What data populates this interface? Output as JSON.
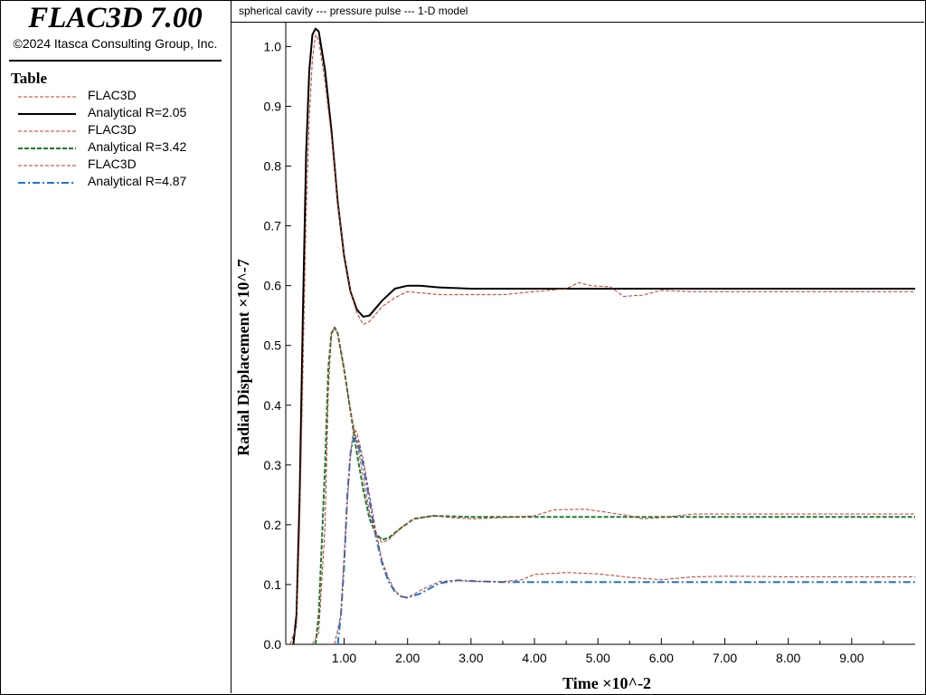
{
  "app": {
    "title": "FLAC3D 7.00",
    "copyright": "©2024 Itasca Consulting Group, Inc."
  },
  "legend": {
    "title": "Table",
    "items": [
      {
        "label": "FLAC3D",
        "color": "#c0392b",
        "style": "dashed-thin"
      },
      {
        "label": "Analytical R=2.05",
        "color": "#000000",
        "style": "solid"
      },
      {
        "label": "FLAC3D",
        "color": "#c0392b",
        "style": "dashed-thin"
      },
      {
        "label": "Analytical R=3.42",
        "color": "#1e7a2e",
        "style": "dashed"
      },
      {
        "label": "FLAC3D",
        "color": "#c0392b",
        "style": "dashed-thin"
      },
      {
        "label": "Analytical R=4.87",
        "color": "#1a73d9",
        "style": "dashdot"
      }
    ]
  },
  "chart_data": {
    "type": "line",
    "title": "spherical cavity --- pressure pulse --- 1-D model",
    "xlabel": "Time ×10^-2",
    "ylabel": "Radial Displacement ×10^-7",
    "xlim": [
      0.08,
      10.0
    ],
    "ylim": [
      0.0,
      1.04
    ],
    "xticks": [
      "1.00",
      "2.00",
      "3.00",
      "4.00",
      "5.00",
      "6.00",
      "7.00",
      "8.00",
      "9.00"
    ],
    "yticks": [
      "0.0",
      "0.1",
      "0.2",
      "0.3",
      "0.4",
      "0.5",
      "0.6",
      "0.7",
      "0.8",
      "0.9",
      "1.0"
    ],
    "series": [
      {
        "name": "FLAC3D",
        "color": "#c0392b",
        "style": "dashed-thin",
        "points": [
          [
            0.15,
            0
          ],
          [
            0.25,
            0.03
          ],
          [
            0.3,
            0.2
          ],
          [
            0.35,
            0.45
          ],
          [
            0.4,
            0.72
          ],
          [
            0.45,
            0.88
          ],
          [
            0.5,
            0.98
          ],
          [
            0.55,
            1.02
          ],
          [
            0.6,
            1.01
          ],
          [
            0.7,
            0.94
          ],
          [
            0.8,
            0.85
          ],
          [
            0.9,
            0.74
          ],
          [
            1.0,
            0.65
          ],
          [
            1.1,
            0.59
          ],
          [
            1.2,
            0.555
          ],
          [
            1.3,
            0.535
          ],
          [
            1.4,
            0.54
          ],
          [
            1.6,
            0.565
          ],
          [
            1.8,
            0.58
          ],
          [
            2.0,
            0.59
          ],
          [
            2.5,
            0.585
          ],
          [
            3.0,
            0.585
          ],
          [
            3.5,
            0.585
          ],
          [
            4.0,
            0.59
          ],
          [
            4.5,
            0.595
          ],
          [
            4.7,
            0.605
          ],
          [
            4.9,
            0.6
          ],
          [
            5.2,
            0.598
          ],
          [
            5.4,
            0.582
          ],
          [
            5.7,
            0.584
          ],
          [
            6.0,
            0.592
          ],
          [
            6.5,
            0.59
          ],
          [
            7.0,
            0.59
          ],
          [
            8.0,
            0.59
          ],
          [
            9.0,
            0.59
          ],
          [
            10.0,
            0.59
          ]
        ]
      },
      {
        "name": "Analytical R=2.05",
        "color": "#000000",
        "style": "solid",
        "points": [
          [
            0.2,
            0
          ],
          [
            0.25,
            0.05
          ],
          [
            0.3,
            0.25
          ],
          [
            0.35,
            0.55
          ],
          [
            0.4,
            0.82
          ],
          [
            0.45,
            0.96
          ],
          [
            0.5,
            1.02
          ],
          [
            0.55,
            1.03
          ],
          [
            0.6,
            1.025
          ],
          [
            0.7,
            0.96
          ],
          [
            0.8,
            0.86
          ],
          [
            0.9,
            0.74
          ],
          [
            1.0,
            0.65
          ],
          [
            1.1,
            0.59
          ],
          [
            1.2,
            0.56
          ],
          [
            1.3,
            0.548
          ],
          [
            1.4,
            0.55
          ],
          [
            1.6,
            0.575
          ],
          [
            1.8,
            0.595
          ],
          [
            2.0,
            0.6
          ],
          [
            2.2,
            0.6
          ],
          [
            2.5,
            0.597
          ],
          [
            3.0,
            0.595
          ],
          [
            4.0,
            0.595
          ],
          [
            5.0,
            0.595
          ],
          [
            6.0,
            0.595
          ],
          [
            7.0,
            0.595
          ],
          [
            8.0,
            0.595
          ],
          [
            9.0,
            0.595
          ],
          [
            10.0,
            0.595
          ]
        ]
      },
      {
        "name": "FLAC3D",
        "color": "#c0392b",
        "style": "dashed-thin",
        "points": [
          [
            0.5,
            0
          ],
          [
            0.6,
            0.02
          ],
          [
            0.7,
            0.2
          ],
          [
            0.75,
            0.42
          ],
          [
            0.8,
            0.52
          ],
          [
            0.85,
            0.53
          ],
          [
            0.9,
            0.52
          ],
          [
            1.0,
            0.46
          ],
          [
            1.1,
            0.39
          ],
          [
            1.2,
            0.34
          ],
          [
            1.3,
            0.28
          ],
          [
            1.4,
            0.22
          ],
          [
            1.5,
            0.185
          ],
          [
            1.6,
            0.17
          ],
          [
            1.7,
            0.175
          ],
          [
            1.9,
            0.195
          ],
          [
            2.1,
            0.21
          ],
          [
            2.4,
            0.215
          ],
          [
            2.7,
            0.212
          ],
          [
            3.0,
            0.21
          ],
          [
            3.5,
            0.212
          ],
          [
            4.0,
            0.215
          ],
          [
            4.3,
            0.225
          ],
          [
            4.8,
            0.226
          ],
          [
            5.2,
            0.22
          ],
          [
            5.5,
            0.215
          ],
          [
            5.7,
            0.21
          ],
          [
            6.0,
            0.212
          ],
          [
            6.5,
            0.218
          ],
          [
            7.0,
            0.218
          ],
          [
            8.0,
            0.218
          ],
          [
            9.0,
            0.218
          ],
          [
            10.0,
            0.218
          ]
        ]
      },
      {
        "name": "Analytical R=3.42",
        "color": "#1e7a2e",
        "style": "dashed",
        "points": [
          [
            0.55,
            0
          ],
          [
            0.6,
            0.05
          ],
          [
            0.7,
            0.3
          ],
          [
            0.75,
            0.46
          ],
          [
            0.8,
            0.52
          ],
          [
            0.85,
            0.53
          ],
          [
            0.9,
            0.52
          ],
          [
            1.0,
            0.46
          ],
          [
            1.1,
            0.39
          ],
          [
            1.2,
            0.32
          ],
          [
            1.3,
            0.26
          ],
          [
            1.4,
            0.21
          ],
          [
            1.5,
            0.185
          ],
          [
            1.6,
            0.175
          ],
          [
            1.7,
            0.178
          ],
          [
            1.9,
            0.195
          ],
          [
            2.1,
            0.21
          ],
          [
            2.4,
            0.215
          ],
          [
            3.0,
            0.213
          ],
          [
            4.0,
            0.213
          ],
          [
            5.0,
            0.213
          ],
          [
            6.0,
            0.213
          ],
          [
            7.0,
            0.213
          ],
          [
            8.0,
            0.213
          ],
          [
            9.0,
            0.213
          ],
          [
            10.0,
            0.213
          ]
        ]
      },
      {
        "name": "FLAC3D",
        "color": "#c0392b",
        "style": "dashed-thin",
        "points": [
          [
            0.85,
            0
          ],
          [
            0.95,
            0.05
          ],
          [
            1.0,
            0.15
          ],
          [
            1.1,
            0.32
          ],
          [
            1.15,
            0.36
          ],
          [
            1.2,
            0.355
          ],
          [
            1.3,
            0.31
          ],
          [
            1.4,
            0.25
          ],
          [
            1.5,
            0.19
          ],
          [
            1.6,
            0.14
          ],
          [
            1.7,
            0.11
          ],
          [
            1.8,
            0.09
          ],
          [
            1.9,
            0.08
          ],
          [
            2.0,
            0.078
          ],
          [
            2.2,
            0.09
          ],
          [
            2.5,
            0.105
          ],
          [
            2.8,
            0.107
          ],
          [
            3.0,
            0.105
          ],
          [
            3.5,
            0.105
          ],
          [
            3.8,
            0.108
          ],
          [
            4.0,
            0.117
          ],
          [
            4.5,
            0.12
          ],
          [
            5.0,
            0.118
          ],
          [
            5.5,
            0.112
          ],
          [
            6.0,
            0.108
          ],
          [
            6.5,
            0.113
          ],
          [
            7.0,
            0.114
          ],
          [
            8.0,
            0.113
          ],
          [
            9.0,
            0.113
          ],
          [
            10.0,
            0.113
          ]
        ]
      },
      {
        "name": "Analytical R=4.87",
        "color": "#1a73d9",
        "style": "dashdot",
        "points": [
          [
            0.9,
            0
          ],
          [
            0.95,
            0.05
          ],
          [
            1.0,
            0.13
          ],
          [
            1.05,
            0.25
          ],
          [
            1.1,
            0.32
          ],
          [
            1.15,
            0.345
          ],
          [
            1.2,
            0.345
          ],
          [
            1.3,
            0.3
          ],
          [
            1.4,
            0.24
          ],
          [
            1.5,
            0.18
          ],
          [
            1.6,
            0.135
          ],
          [
            1.7,
            0.105
          ],
          [
            1.8,
            0.088
          ],
          [
            1.9,
            0.08
          ],
          [
            2.0,
            0.078
          ],
          [
            2.2,
            0.085
          ],
          [
            2.5,
            0.102
          ],
          [
            2.8,
            0.107
          ],
          [
            3.0,
            0.106
          ],
          [
            3.5,
            0.104
          ],
          [
            4.0,
            0.104
          ],
          [
            5.0,
            0.104
          ],
          [
            6.0,
            0.104
          ],
          [
            7.0,
            0.104
          ],
          [
            8.0,
            0.104
          ],
          [
            9.0,
            0.104
          ],
          [
            10.0,
            0.104
          ]
        ]
      }
    ]
  }
}
